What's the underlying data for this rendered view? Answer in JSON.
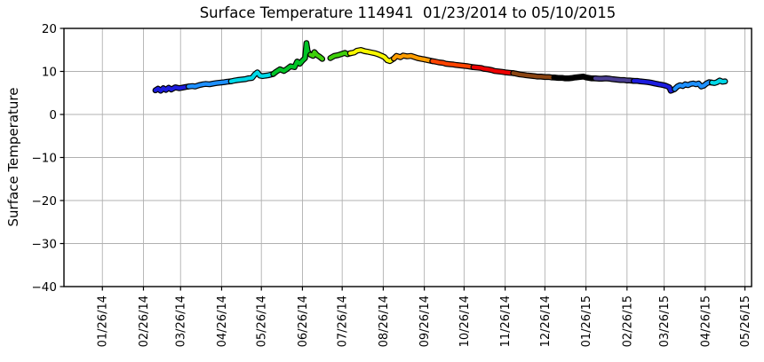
{
  "chart_data": {
    "type": "line",
    "title": "Surface Temperature 114941  01/23/2014 to 05/10/2015",
    "ylabel": "Surface Temperature",
    "xlabel": "",
    "ylim": [
      -40,
      20
    ],
    "grid": true,
    "legend": "none",
    "yticks": [
      {
        "label": "20",
        "value": 20
      },
      {
        "label": "10",
        "value": 10
      },
      {
        "label": "0",
        "value": 0
      },
      {
        "label": "−10",
        "value": -10
      },
      {
        "label": "−20",
        "value": -20
      },
      {
        "label": "−30",
        "value": -30
      },
      {
        "label": "−40",
        "value": -40
      }
    ],
    "x_epoch": "2013-12-28",
    "x_domain_days": 519,
    "xticks": [
      {
        "label": "01/26/14",
        "day": 29
      },
      {
        "label": "02/26/14",
        "day": 60
      },
      {
        "label": "03/26/14",
        "day": 88
      },
      {
        "label": "04/26/14",
        "day": 119
      },
      {
        "label": "05/26/14",
        "day": 149
      },
      {
        "label": "06/26/14",
        "day": 180
      },
      {
        "label": "07/26/14",
        "day": 210
      },
      {
        "label": "08/26/14",
        "day": 241
      },
      {
        "label": "09/26/14",
        "day": 272
      },
      {
        "label": "10/26/14",
        "day": 302
      },
      {
        "label": "11/26/14",
        "day": 333
      },
      {
        "label": "12/26/14",
        "day": 363
      },
      {
        "label": "01/26/15",
        "day": 394
      },
      {
        "label": "02/26/15",
        "day": 425
      },
      {
        "label": "03/26/15",
        "day": 453
      },
      {
        "label": "04/26/15",
        "day": 484
      },
      {
        "label": "05/26/15",
        "day": 514
      }
    ],
    "line_style": {
      "outline_color": "#000000",
      "outline_width": 6.6,
      "core_width": 4.2
    },
    "month_colors": [
      "#000000",
      "#4b3f94",
      "#1c1cdf",
      "#1e90ff",
      "#00d8e8",
      "#00c426",
      "#3ecf0a",
      "#f7f700",
      "#ff9d00",
      "#ff4400",
      "#ee0000",
      "#8b4513"
    ],
    "gap_threshold_days": 4,
    "points": [
      [
        69,
        5.6
      ],
      [
        71,
        6.0
      ],
      [
        73,
        5.5
      ],
      [
        75,
        6.1
      ],
      [
        77,
        5.7
      ],
      [
        79,
        6.2
      ],
      [
        81,
        5.8
      ],
      [
        84,
        6.3
      ],
      [
        87,
        6.1
      ],
      [
        89,
        6.2
      ],
      [
        92,
        6.4
      ],
      [
        94,
        6.5
      ],
      [
        97,
        6.6
      ],
      [
        99,
        6.5
      ],
      [
        102,
        6.8
      ],
      [
        105,
        7.0
      ],
      [
        107,
        7.1
      ],
      [
        110,
        7.0
      ],
      [
        113,
        7.2
      ],
      [
        115,
        7.3
      ],
      [
        118,
        7.4
      ],
      [
        121,
        7.5
      ],
      [
        123,
        7.6
      ],
      [
        126,
        7.7
      ],
      [
        129,
        7.9
      ],
      [
        131,
        8.0
      ],
      [
        134,
        8.1
      ],
      [
        137,
        8.2
      ],
      [
        139,
        8.4
      ],
      [
        142,
        8.5
      ],
      [
        144,
        9.3
      ],
      [
        146,
        9.8
      ],
      [
        148,
        9.0
      ],
      [
        150,
        8.9
      ],
      [
        152,
        9.0
      ],
      [
        154,
        9.1
      ],
      [
        158,
        9.4
      ],
      [
        160,
        9.9
      ],
      [
        163,
        10.5
      ],
      [
        166,
        10.1
      ],
      [
        168,
        10.5
      ],
      [
        171,
        11.2
      ],
      [
        174,
        11.0
      ],
      [
        176,
        12.3
      ],
      [
        178,
        11.8
      ],
      [
        180,
        12.5
      ],
      [
        182,
        13.1
      ],
      [
        183,
        16.6
      ],
      [
        184,
        14.6
      ],
      [
        186,
        13.9
      ],
      [
        188,
        13.6
      ],
      [
        189,
        14.5
      ],
      [
        191,
        13.8
      ],
      [
        193,
        13.4
      ],
      [
        195,
        12.9
      ],
      [
        201,
        13.1
      ],
      [
        204,
        13.6
      ],
      [
        207,
        13.8
      ],
      [
        209,
        14.0
      ],
      [
        212,
        14.3
      ],
      [
        214,
        14.0
      ],
      [
        216,
        14.2
      ],
      [
        219,
        14.4
      ],
      [
        221,
        14.8
      ],
      [
        224,
        15.0
      ],
      [
        227,
        14.7
      ],
      [
        229,
        14.6
      ],
      [
        232,
        14.4
      ],
      [
        235,
        14.2
      ],
      [
        237,
        14.0
      ],
      [
        240,
        13.6
      ],
      [
        242,
        13.3
      ],
      [
        244,
        12.6
      ],
      [
        246,
        12.4
      ],
      [
        249,
        13.0
      ],
      [
        251,
        13.6
      ],
      [
        254,
        13.3
      ],
      [
        256,
        13.7
      ],
      [
        259,
        13.5
      ],
      [
        262,
        13.6
      ],
      [
        264,
        13.4
      ],
      [
        267,
        13.1
      ],
      [
        270,
        12.9
      ],
      [
        272,
        12.8
      ],
      [
        275,
        12.6
      ],
      [
        278,
        12.4
      ],
      [
        280,
        12.3
      ],
      [
        283,
        12.1
      ],
      [
        286,
        12.0
      ],
      [
        288,
        11.8
      ],
      [
        291,
        11.7
      ],
      [
        294,
        11.6
      ],
      [
        296,
        11.5
      ],
      [
        299,
        11.4
      ],
      [
        302,
        11.3
      ],
      [
        305,
        11.2
      ],
      [
        307,
        11.1
      ],
      [
        309,
        11.0
      ],
      [
        312,
        10.9
      ],
      [
        315,
        10.8
      ],
      [
        317,
        10.6
      ],
      [
        320,
        10.5
      ],
      [
        323,
        10.3
      ],
      [
        325,
        10.1
      ],
      [
        328,
        10.0
      ],
      [
        331,
        9.9
      ],
      [
        333,
        9.8
      ],
      [
        336,
        9.7
      ],
      [
        339,
        9.6
      ],
      [
        341,
        9.5
      ],
      [
        344,
        9.3
      ],
      [
        347,
        9.2
      ],
      [
        349,
        9.1
      ],
      [
        352,
        9.0
      ],
      [
        355,
        8.9
      ],
      [
        357,
        8.8
      ],
      [
        360,
        8.8
      ],
      [
        363,
        8.7
      ],
      [
        366,
        8.7
      ],
      [
        368,
        8.6
      ],
      [
        370,
        8.6
      ],
      [
        373,
        8.5
      ],
      [
        376,
        8.5
      ],
      [
        378,
        8.4
      ],
      [
        381,
        8.4
      ],
      [
        384,
        8.5
      ],
      [
        386,
        8.6
      ],
      [
        389,
        8.7
      ],
      [
        392,
        8.8
      ],
      [
        394,
        8.6
      ],
      [
        396,
        8.5
      ],
      [
        398,
        8.4
      ],
      [
        401,
        8.4
      ],
      [
        404,
        8.3
      ],
      [
        406,
        8.3
      ],
      [
        409,
        8.4
      ],
      [
        412,
        8.3
      ],
      [
        414,
        8.2
      ],
      [
        417,
        8.1
      ],
      [
        420,
        8.0
      ],
      [
        423,
        8.0
      ],
      [
        425,
        7.9
      ],
      [
        427,
        7.9
      ],
      [
        430,
        7.8
      ],
      [
        433,
        7.8
      ],
      [
        435,
        7.7
      ],
      [
        438,
        7.6
      ],
      [
        441,
        7.5
      ],
      [
        443,
        7.4
      ],
      [
        446,
        7.2
      ],
      [
        449,
        7.0
      ],
      [
        451,
        6.9
      ],
      [
        454,
        6.7
      ],
      [
        457,
        6.3
      ],
      [
        458,
        5.5
      ],
      [
        461,
        5.9
      ],
      [
        463,
        6.5
      ],
      [
        465,
        6.8
      ],
      [
        467,
        6.6
      ],
      [
        469,
        7.0
      ],
      [
        471,
        6.8
      ],
      [
        473,
        7.1
      ],
      [
        475,
        7.2
      ],
      [
        477,
        7.0
      ],
      [
        479,
        7.2
      ],
      [
        481,
        6.5
      ],
      [
        483,
        6.7
      ],
      [
        485,
        7.2
      ],
      [
        487,
        7.5
      ],
      [
        489,
        7.4
      ],
      [
        491,
        7.3
      ],
      [
        493,
        7.5
      ],
      [
        495,
        7.9
      ],
      [
        497,
        7.6
      ],
      [
        499,
        7.7
      ]
    ]
  }
}
